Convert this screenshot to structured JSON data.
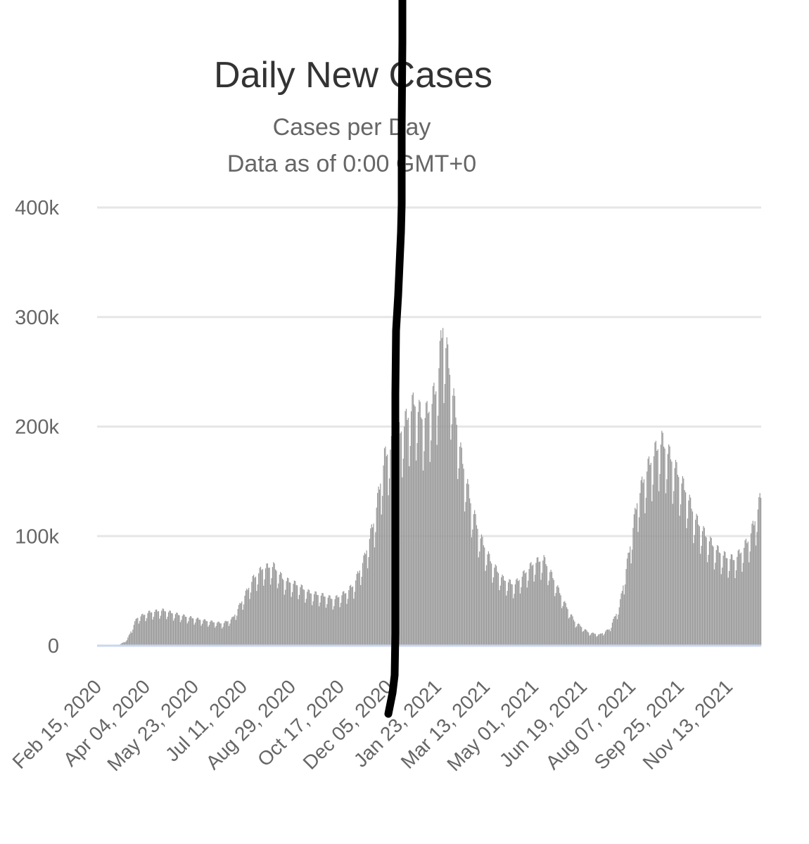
{
  "chart_data": {
    "type": "bar",
    "title": "Daily New Cases",
    "subtitle_lines": [
      "Cases per Day",
      "Data as of 0:00 GMT+0"
    ],
    "xlabel": "",
    "ylabel": "",
    "ylim": [
      0,
      400000
    ],
    "y_ticks": [
      {
        "value": 0,
        "label": "0"
      },
      {
        "value": 100000,
        "label": "100k"
      },
      {
        "value": 200000,
        "label": "200k"
      },
      {
        "value": 300000,
        "label": "300k"
      },
      {
        "value": 400000,
        "label": "400k"
      }
    ],
    "x_ticks": [
      "Feb 15, 2020",
      "Apr 04, 2020",
      "May 23, 2020",
      "Jul 11, 2020",
      "Aug 29, 2020",
      "Oct 17, 2020",
      "Dec 05, 2020",
      "Jan 23, 2021",
      "Mar 13, 2021",
      "May 01, 2021",
      "Jun 19, 2021",
      "Aug 07, 2021",
      "Sep 25, 2021",
      "Nov 13, 2021"
    ],
    "x_start": "Feb 15, 2020",
    "bar_color": "#999999",
    "grid": true,
    "annotation": "hand-drawn black vertical line near Jan 2021",
    "x": [
      "2020-02-15",
      "2020-03-01",
      "2020-03-10",
      "2020-03-20",
      "2020-04-01",
      "2020-04-15",
      "2020-05-01",
      "2020-05-15",
      "2020-06-01",
      "2020-06-15",
      "2020-06-25",
      "2020-07-05",
      "2020-07-15",
      "2020-07-25",
      "2020-08-05",
      "2020-08-15",
      "2020-08-29",
      "2020-09-10",
      "2020-09-25",
      "2020-10-05",
      "2020-10-17",
      "2020-10-25",
      "2020-11-05",
      "2020-11-15",
      "2020-11-25",
      "2020-12-05",
      "2020-12-15",
      "2020-12-25",
      "2021-01-03",
      "2021-01-10",
      "2021-01-17",
      "2021-01-23",
      "2021-02-01",
      "2021-02-10",
      "2021-02-20",
      "2021-03-01",
      "2021-03-13",
      "2021-03-25",
      "2021-04-05",
      "2021-04-15",
      "2021-04-25",
      "2021-05-05",
      "2021-05-15",
      "2021-05-25",
      "2021-06-05",
      "2021-06-19",
      "2021-06-30",
      "2021-07-10",
      "2021-07-20",
      "2021-07-30",
      "2021-08-07",
      "2021-08-15",
      "2021-08-25",
      "2021-09-01",
      "2021-09-10",
      "2021-09-25",
      "2021-10-05",
      "2021-10-15",
      "2021-10-25",
      "2021-11-05",
      "2021-11-13",
      "2021-11-20",
      "2021-11-27",
      "2021-12-03",
      "2021-12-10"
    ],
    "y": [
      0,
      0,
      5000,
      25000,
      30000,
      32000,
      28000,
      25000,
      22000,
      20000,
      25000,
      42000,
      60000,
      70000,
      72000,
      60000,
      55000,
      48000,
      45000,
      42000,
      48000,
      55000,
      80000,
      115000,
      170000,
      185000,
      200000,
      220000,
      205000,
      215000,
      235000,
      290000,
      235000,
      175000,
      130000,
      100000,
      75000,
      60000,
      55000,
      65000,
      75000,
      78000,
      60000,
      40000,
      22000,
      12000,
      10000,
      15000,
      35000,
      85000,
      130000,
      155000,
      175000,
      185000,
      170000,
      140000,
      115000,
      100000,
      88000,
      80000,
      78000,
      85000,
      95000,
      110000,
      135000
    ]
  }
}
